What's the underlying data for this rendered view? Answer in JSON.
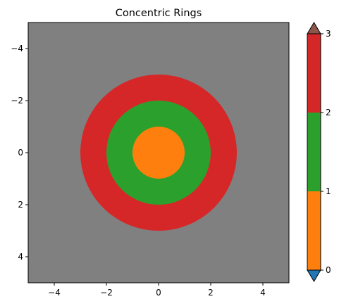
{
  "chart_data": {
    "type": "heatmap",
    "title": "Concentric Rings",
    "xlabel": "",
    "ylabel": "",
    "xlim": [
      -5,
      5
    ],
    "ylim": [
      5,
      -5
    ],
    "y_inverted": true,
    "x_ticks": [
      "−4",
      "−2",
      "0",
      "2",
      "4"
    ],
    "x_tick_values": [
      -4,
      -2,
      0,
      2,
      4
    ],
    "y_ticks": [
      "−4",
      "−2",
      "0",
      "2",
      "4"
    ],
    "y_tick_values": [
      -4,
      -2,
      0,
      2,
      4
    ],
    "background_color": "#808080",
    "rings": [
      {
        "name": "",
        "outer_radius": 3,
        "level_range": [
          2,
          3
        ],
        "color": "#d62728"
      },
      {
        "name": "",
        "outer_radius": 2,
        "level_range": [
          1,
          2
        ],
        "color": "#2ca02c"
      },
      {
        "name": "",
        "outer_radius": 1,
        "level_range": [
          0,
          1
        ],
        "color": "#ff7f0e"
      }
    ],
    "colorbar": {
      "levels": [
        0,
        1,
        2,
        3
      ],
      "tick_labels": [
        "0",
        "1",
        "2",
        "3"
      ],
      "bands": [
        {
          "from": 0,
          "to": 1,
          "color": "#ff7f0e"
        },
        {
          "from": 1,
          "to": 2,
          "color": "#2ca02c"
        },
        {
          "from": 2,
          "to": 3,
          "color": "#d62728"
        }
      ],
      "extend_over_color": "#8c564b",
      "extend_under_color": "#1f77b4"
    },
    "grid": false,
    "legend": "none"
  }
}
